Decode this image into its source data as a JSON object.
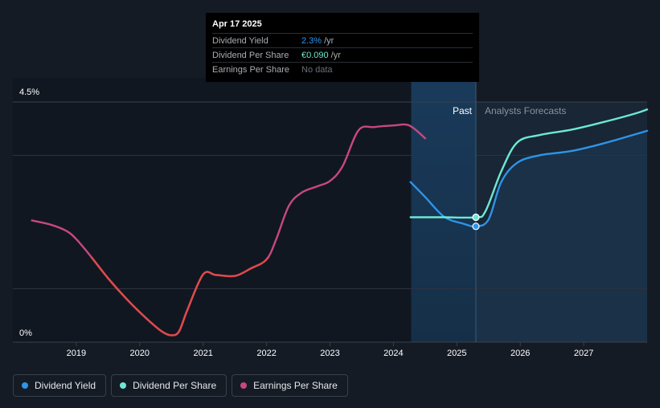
{
  "tooltip": {
    "date": "Apr 17 2025",
    "rows": [
      {
        "name": "Dividend Yield",
        "value": "2.3%",
        "unit": "/yr"
      },
      {
        "name": "Dividend Per Share",
        "value": "€0.090",
        "unit": "/yr"
      },
      {
        "name": "Earnings Per Share",
        "value": "No data",
        "unit": ""
      }
    ]
  },
  "regions": {
    "past": "Past",
    "forecast": "Analysts Forecasts"
  },
  "legend": [
    {
      "label": "Dividend Yield",
      "color": "#2e94e8"
    },
    {
      "label": "Dividend Per Share",
      "color": "#6de8d4"
    },
    {
      "label": "Earnings Per Share",
      "color": "#c8487e"
    }
  ],
  "chart_data": {
    "type": "line",
    "title": "",
    "xlabel": "",
    "ylabel": "",
    "y_tick_labels": [
      "0%",
      "4.5%"
    ],
    "ylim": [
      0,
      4.5
    ],
    "xlim": [
      2018.0,
      2028.0
    ],
    "x_tick_labels": [
      "2019",
      "2020",
      "2021",
      "2022",
      "2023",
      "2024",
      "2025",
      "2026",
      "2027"
    ],
    "x_ticks": [
      2019,
      2020,
      2021,
      2022,
      2023,
      2024,
      2025,
      2026,
      2027
    ],
    "past_forecast_divider": 2025.3,
    "forecast_shading_start": 2024.28,
    "series": [
      {
        "name": "Earnings Per Share",
        "color": "#c8487e",
        "points": [
          [
            2018.3,
            2.28
          ],
          [
            2018.6,
            2.2
          ],
          [
            2018.85,
            2.08
          ],
          [
            2019.0,
            1.93
          ],
          [
            2019.2,
            1.65
          ],
          [
            2019.5,
            1.2
          ],
          [
            2019.8,
            0.8
          ],
          [
            2020.1,
            0.45
          ],
          [
            2020.35,
            0.2
          ],
          [
            2020.5,
            0.13
          ],
          [
            2020.62,
            0.2
          ],
          [
            2020.75,
            0.6
          ],
          [
            2021.0,
            1.27
          ],
          [
            2021.2,
            1.26
          ],
          [
            2021.5,
            1.24
          ],
          [
            2021.75,
            1.38
          ],
          [
            2022.0,
            1.55
          ],
          [
            2022.15,
            1.92
          ],
          [
            2022.35,
            2.55
          ],
          [
            2022.55,
            2.8
          ],
          [
            2022.8,
            2.92
          ],
          [
            2023.0,
            3.02
          ],
          [
            2023.2,
            3.3
          ],
          [
            2023.45,
            3.97
          ],
          [
            2023.7,
            4.03
          ],
          [
            2024.0,
            4.06
          ],
          [
            2024.25,
            4.06
          ],
          [
            2024.5,
            3.82
          ]
        ]
      },
      {
        "name": "Dividend Yield",
        "color": "#2e94e8",
        "points": [
          [
            2024.27,
            3.0
          ],
          [
            2024.5,
            2.72
          ],
          [
            2024.8,
            2.35
          ],
          [
            2025.1,
            2.22
          ],
          [
            2025.3,
            2.17
          ],
          [
            2025.5,
            2.3
          ],
          [
            2025.7,
            3.0
          ],
          [
            2025.95,
            3.36
          ],
          [
            2026.3,
            3.5
          ],
          [
            2026.8,
            3.58
          ],
          [
            2027.3,
            3.72
          ],
          [
            2027.8,
            3.89
          ],
          [
            2028.0,
            3.96
          ]
        ]
      },
      {
        "name": "Dividend Per Share",
        "color": "#6de8d4",
        "points": [
          [
            2024.27,
            2.34
          ],
          [
            2024.8,
            2.34
          ],
          [
            2025.3,
            2.34
          ],
          [
            2025.45,
            2.45
          ],
          [
            2025.7,
            3.2
          ],
          [
            2025.95,
            3.74
          ],
          [
            2026.3,
            3.88
          ],
          [
            2026.8,
            3.98
          ],
          [
            2027.3,
            4.12
          ],
          [
            2027.8,
            4.28
          ],
          [
            2028.0,
            4.36
          ]
        ]
      }
    ],
    "highlighted_points": [
      {
        "series": "Dividend Per Share",
        "x": 2025.3,
        "y": 2.34
      },
      {
        "series": "Dividend Yield",
        "x": 2025.3,
        "y": 2.17
      }
    ],
    "legend_position": "bottom-left",
    "grid": true
  }
}
